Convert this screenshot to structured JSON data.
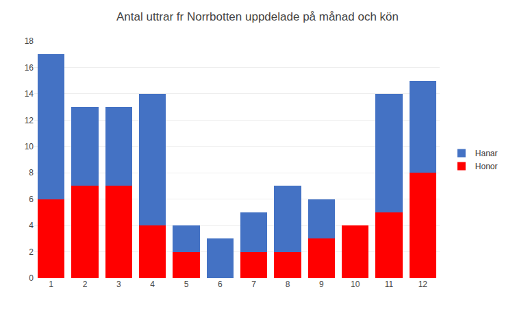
{
  "chart_data": {
    "type": "bar",
    "stacked": true,
    "title": "Antal uttrar fr Norrbotten uppdelade på månad och kön",
    "categories": [
      "1",
      "2",
      "3",
      "4",
      "5",
      "6",
      "7",
      "8",
      "9",
      "10",
      "11",
      "12"
    ],
    "series": [
      {
        "name": "Honor",
        "color": "#FF0000",
        "values": [
          6,
          7,
          7,
          4,
          2,
          0,
          2,
          2,
          3,
          4,
          5,
          8
        ]
      },
      {
        "name": "Hanar",
        "color": "#4472C4",
        "values": [
          11,
          6,
          6,
          10,
          2,
          3,
          3,
          5,
          3,
          0,
          9,
          7
        ]
      }
    ],
    "ylim": [
      0,
      18
    ],
    "yticks": [
      0,
      2,
      4,
      6,
      8,
      10,
      12,
      14,
      16,
      18
    ],
    "grid": true,
    "legend": "right"
  }
}
